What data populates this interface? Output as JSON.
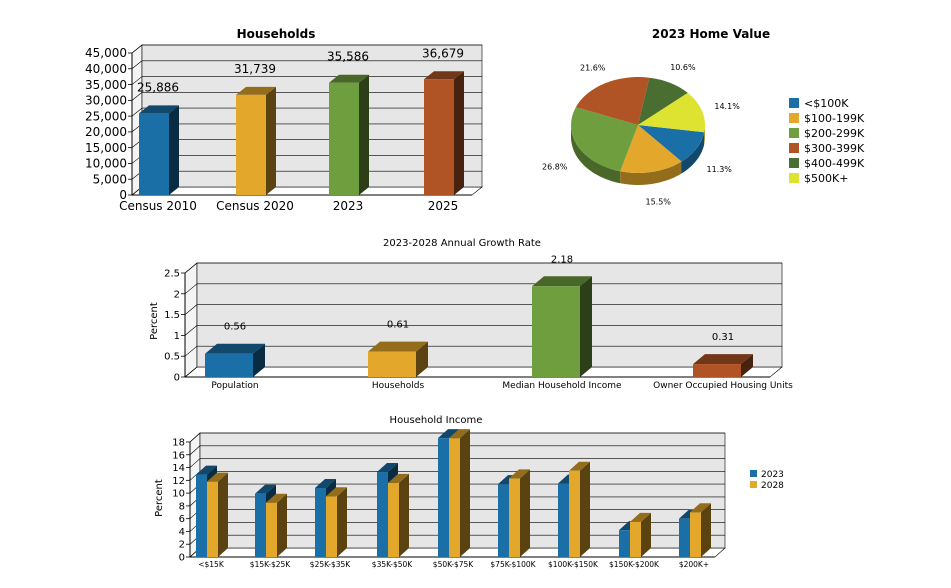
{
  "chart_data": [
    {
      "type": "bar",
      "title": "Households",
      "categories": [
        "Census 2010",
        "Census 2020",
        "2023",
        "2025"
      ],
      "values": [
        25886,
        31739,
        35586,
        36679
      ],
      "value_labels": [
        "25,886",
        "31,739",
        "35,586",
        "36,679"
      ],
      "colors": [
        "#1a6fa6",
        "#e3a82b",
        "#6e9e3d",
        "#b05426"
      ],
      "yticks": [
        "0",
        "5,000",
        "10,000",
        "15,000",
        "20,000",
        "25,000",
        "30,000",
        "35,000",
        "40,000",
        "45,000"
      ],
      "ylim": [
        0,
        45000
      ]
    },
    {
      "type": "pie",
      "title": "2023 Home Value",
      "labels": [
        "<$100K",
        "$100-199K",
        "$200-299K",
        "$300-399K",
        "$400-499K",
        "$500K+"
      ],
      "values": [
        11.3,
        15.5,
        26.8,
        21.6,
        10.6,
        14.1
      ],
      "value_labels": [
        "11.3%",
        "15.5%",
        "26.8%",
        "21.6%",
        "10.6%",
        "14.1%"
      ],
      "colors": [
        "#1a6fa6",
        "#e3a82b",
        "#6e9e3d",
        "#b05426",
        "#4a6e32",
        "#dde330"
      ]
    },
    {
      "type": "bar",
      "title": "2023-2028 Annual Growth Rate",
      "ylabel": "Percent",
      "categories": [
        "Population",
        "Households",
        "Median Household Income",
        "Owner Occupied Housing Units"
      ],
      "values": [
        0.56,
        0.61,
        2.18,
        0.31
      ],
      "value_labels": [
        "0.56",
        "0.61",
        "2.18",
        "0.31"
      ],
      "colors": [
        "#1a6fa6",
        "#e3a82b",
        "#6e9e3d",
        "#b05426"
      ],
      "yticks": [
        "0",
        "0.5",
        "1",
        "1.5",
        "2",
        "2.5"
      ],
      "ylim": [
        0,
        2.5
      ]
    },
    {
      "type": "bar",
      "title": "Household Income",
      "ylabel": "Percent",
      "categories": [
        "<$15K",
        "$15K-$25K",
        "$25K-$35K",
        "$35K-$50K",
        "$50K-$75K",
        "$75K-$100K",
        "$100K-$150K",
        "$150K-$200K",
        "$200K+"
      ],
      "series": [
        {
          "name": "2023",
          "color": "#1a6fa6",
          "values": [
            12.9,
            9.9,
            10.8,
            13.3,
            18.6,
            11.4,
            11.5,
            4.2,
            6.0
          ]
        },
        {
          "name": "2028",
          "color": "#e3a82b",
          "values": [
            11.8,
            8.5,
            9.5,
            11.6,
            18.6,
            12.3,
            13.5,
            5.5,
            7.0
          ]
        }
      ],
      "yticks": [
        "0",
        "2",
        "4",
        "6",
        "8",
        "10",
        "12",
        "14",
        "16",
        "18"
      ],
      "ylim": [
        0,
        18
      ]
    }
  ]
}
